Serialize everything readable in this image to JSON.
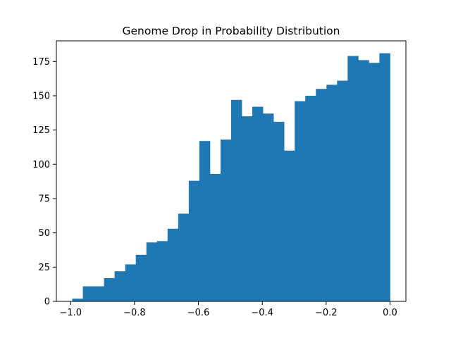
{
  "chart_data": {
    "type": "bar",
    "title": "Genome Drop in Probability Distribution",
    "xlabel": "",
    "ylabel": "",
    "bin_start": -0.9951,
    "bin_width": 0.03317,
    "values": [
      2,
      11,
      11,
      17,
      22,
      27,
      34,
      43,
      44,
      53,
      64,
      88,
      117,
      93,
      118,
      147,
      135,
      142,
      137,
      131,
      110,
      146,
      150,
      155,
      158,
      161,
      179,
      176,
      174,
      181
    ],
    "xlim": [
      -1.0448,
      0.0498
    ],
    "ylim": [
      0,
      190.05
    ],
    "xticks": [
      -1.0,
      -0.8,
      -0.6,
      -0.4,
      -0.2,
      0.0
    ],
    "xtick_labels": [
      "−1.0",
      "−0.8",
      "−0.6",
      "−0.4",
      "−0.2",
      "0.0"
    ],
    "yticks": [
      0,
      25,
      50,
      75,
      100,
      125,
      150,
      175
    ],
    "ytick_labels": [
      "0",
      "25",
      "50",
      "75",
      "100",
      "125",
      "150",
      "175"
    ],
    "bar_color": "#1f77b4",
    "grid": false,
    "legend": "none"
  }
}
